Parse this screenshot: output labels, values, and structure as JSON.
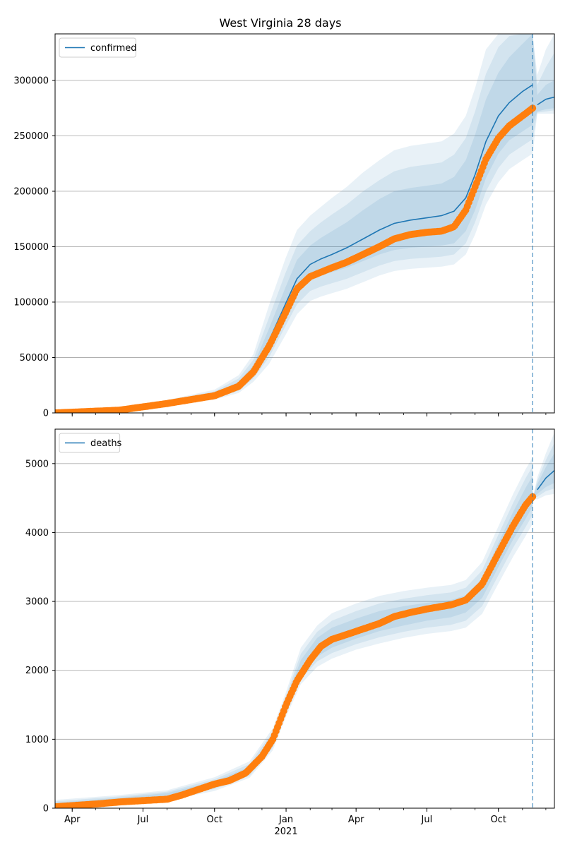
{
  "figure": {
    "title": "West Virginia 28 days"
  },
  "colors": {
    "model": "#1f77b4",
    "observed": "#ff7f0e",
    "band": "#1f77b4",
    "grid": "#b0b0b0",
    "forecast_line": "#1f77b4"
  },
  "chart_data": [
    {
      "type": "line",
      "name": "confirmed",
      "legend": [
        "confirmed"
      ],
      "legend_position": "upper-left",
      "grid": "y",
      "forecast_start": "2021-11-14",
      "xlim": [
        "2020-03-10",
        "2021-12-12"
      ],
      "ylim": [
        0,
        342000
      ],
      "yticks": [
        0,
        50000,
        100000,
        150000,
        200000,
        250000,
        300000
      ],
      "xticks": [
        {
          "date": "2020-04-01",
          "label": "Apr"
        },
        {
          "date": "2020-07-01",
          "label": "Jul"
        },
        {
          "date": "2020-10-01",
          "label": "Oct"
        },
        {
          "date": "2021-01-01",
          "label": "Jan"
        },
        {
          "date": "2021-04-01",
          "label": "Apr"
        },
        {
          "date": "2021-07-01",
          "label": "Jul"
        },
        {
          "date": "2021-10-01",
          "label": "Oct"
        }
      ],
      "model": {
        "x": [
          "2020-03-10",
          "2020-06-01",
          "2020-08-01",
          "2020-10-01",
          "2020-11-01",
          "2020-11-20",
          "2020-12-10",
          "2020-12-31",
          "2021-01-15",
          "2021-02-01",
          "2021-02-15",
          "2021-03-01",
          "2021-03-20",
          "2021-04-10",
          "2021-05-01",
          "2021-05-20",
          "2021-06-10",
          "2021-07-01",
          "2021-07-20",
          "2021-08-05",
          "2021-08-20",
          "2021-09-01",
          "2021-09-15",
          "2021-10-01",
          "2021-10-15",
          "2021-11-01",
          "2021-11-14",
          "2021-11-20",
          "2021-12-01",
          "2021-12-12"
        ],
        "y": [
          0,
          3000,
          9000,
          16000,
          25000,
          38000,
          65000,
          98000,
          121000,
          134000,
          139000,
          143000,
          149000,
          157000,
          165000,
          171000,
          174000,
          176000,
          178000,
          182000,
          194000,
          215000,
          245000,
          268000,
          280000,
          290000,
          296000,
          278000,
          283000,
          285000
        ],
        "bands": [
          {
            "lower": [
              0,
              2600,
              8000,
              14000,
              22000,
              34000,
              56000,
              86000,
              108000,
              120000,
              124000,
              127000,
              131000,
              137000,
              143000,
              147000,
              149000,
              150000,
              151000,
              153000,
              164000,
              183000,
              212000,
              234000,
              246000,
              254000,
              260000,
              272000,
              274000,
              275000
            ],
            "upper": [
              0,
              3400,
              10000,
              18000,
              28000,
              43000,
              76000,
              113000,
              138000,
              151000,
              158000,
              164000,
              172000,
              183000,
              193000,
              200000,
              203000,
              205000,
              207000,
              213000,
              228000,
              251000,
              283000,
              307000,
              321000,
              333000,
              342000,
              287000,
              296000,
              300000
            ]
          },
          {
            "lower": [
              0,
              2400,
              7400,
              13000,
              20000,
              31000,
              50000,
              78000,
              98000,
              110000,
              114000,
              117000,
              121000,
              127000,
              133000,
              137000,
              139000,
              140000,
              141000,
              143000,
              153000,
              172000,
              200000,
              221000,
              233000,
              241000,
              247000,
              271000,
              272000,
              273000
            ],
            "upper": [
              0,
              3600,
              10800,
              19500,
              31000,
              48000,
              86000,
              126000,
              151000,
              164000,
              172000,
              179000,
              188000,
              200000,
              210000,
              218000,
              222000,
              224000,
              226000,
              233000,
              248000,
              272000,
              306000,
              330000,
              340000,
              342000,
              342000,
              296000,
              312000,
              325000
            ]
          },
          {
            "lower": [
              0,
              2200,
              6800,
              12000,
              18000,
              28000,
              44000,
              70000,
              89000,
              101000,
              105000,
              108000,
              112000,
              118000,
              124000,
              128000,
              130000,
              131000,
              132000,
              134000,
              143000,
              161000,
              188000,
              208000,
              220000,
              228000,
              234000,
              270000,
              270000,
              270000
            ],
            "upper": [
              0,
              3800,
              11600,
              21000,
              34000,
              53000,
              97000,
              139000,
              165000,
              178000,
              186000,
              194000,
              204000,
              217000,
              228000,
              237000,
              241000,
              243000,
              245000,
              252000,
              268000,
              293000,
              328000,
              342000,
              342000,
              342000,
              342000,
              305000,
              328000,
              342000
            ]
          }
        ]
      },
      "observed": {
        "x": [
          "2020-03-10",
          "2020-06-01",
          "2020-08-01",
          "2020-10-01",
          "2020-11-01",
          "2020-11-20",
          "2020-12-10",
          "2020-12-31",
          "2021-01-15",
          "2021-02-01",
          "2021-02-15",
          "2021-03-01",
          "2021-03-20",
          "2021-04-10",
          "2021-05-01",
          "2021-05-20",
          "2021-06-10",
          "2021-07-01",
          "2021-07-20",
          "2021-08-05",
          "2021-08-20",
          "2021-09-01",
          "2021-09-15",
          "2021-10-01",
          "2021-10-15",
          "2021-11-01",
          "2021-11-14"
        ],
        "y": [
          0,
          2500,
          8500,
          15500,
          24000,
          37000,
          60000,
          90000,
          112000,
          123000,
          127000,
          131000,
          136000,
          143000,
          150000,
          157000,
          161000,
          163000,
          164000,
          168000,
          183000,
          204000,
          229000,
          248000,
          259000,
          268000,
          275000
        ]
      }
    },
    {
      "type": "line",
      "name": "deaths",
      "legend": [
        "deaths"
      ],
      "legend_position": "upper-left",
      "grid": "y",
      "forecast_start": "2021-11-14",
      "xlim": [
        "2020-03-10",
        "2021-12-12"
      ],
      "ylim": [
        0,
        5500
      ],
      "yticks": [
        0,
        1000,
        2000,
        3000,
        4000,
        5000
      ],
      "xticks": [
        {
          "date": "2020-04-01",
          "label": "Apr"
        },
        {
          "date": "2020-07-01",
          "label": "Jul"
        },
        {
          "date": "2020-10-01",
          "label": "Oct"
        },
        {
          "date": "2021-01-01",
          "label": "Jan",
          "sublabel": "2021"
        },
        {
          "date": "2021-04-01",
          "label": "Apr"
        },
        {
          "date": "2021-07-01",
          "label": "Jul"
        },
        {
          "date": "2021-10-01",
          "label": "Oct"
        }
      ],
      "model": {
        "x": [
          "2021-11-14",
          "2021-11-20",
          "2021-12-01",
          "2021-12-12"
        ],
        "y": [
          4500,
          4620,
          4790,
          4900
        ],
        "bands": [
          {
            "lower": [
              4500,
              4560,
              4660,
              4720
            ],
            "upper": [
              4500,
              4700,
              4950,
              5150
            ]
          },
          {
            "lower": [
              4500,
              4520,
              4600,
              4640
            ],
            "upper": [
              4500,
              4750,
              5050,
              5300
            ]
          },
          {
            "lower": [
              4500,
              4480,
              4540,
              4560
            ],
            "upper": [
              4500,
              4800,
              5150,
              5450
            ]
          }
        ]
      },
      "history_bands": {
        "x": [
          "2020-03-10",
          "2020-06-01",
          "2020-08-01",
          "2020-10-01",
          "2020-11-15",
          "2020-12-15",
          "2021-01-01",
          "2021-01-20",
          "2021-02-10",
          "2021-03-01",
          "2021-04-01",
          "2021-05-01",
          "2021-06-01",
          "2021-07-01",
          "2021-08-01",
          "2021-08-20",
          "2021-09-10",
          "2021-10-01",
          "2021-10-20",
          "2021-11-05",
          "2021-11-14"
        ],
        "bands": [
          {
            "lower": [
              0,
              80,
              150,
              310,
              500,
              920,
              1430,
              1950,
              2200,
              2330,
              2460,
              2570,
              2650,
              2720,
              2770,
              2840,
              3050,
              3500,
              3900,
              4200,
              4380
            ],
            "upper": [
              80,
              150,
              220,
              390,
              600,
              1060,
              1570,
              2150,
              2470,
              2620,
              2750,
              2860,
              2930,
              2980,
              3020,
              3090,
              3330,
              3850,
              4300,
              4650,
              4820
            ]
          },
          {
            "lower": [
              0,
              60,
              130,
              280,
              470,
              880,
              1380,
              1870,
              2130,
              2250,
              2380,
              2480,
              2560,
              2620,
              2660,
              2720,
              2930,
              3380,
              3780,
              4080,
              4260
            ],
            "upper": [
              100,
              170,
              240,
              420,
              640,
              1110,
              1630,
              2240,
              2560,
              2720,
              2860,
              2970,
              3040,
              3090,
              3130,
              3200,
              3450,
              3970,
              4430,
              4790,
              4960
            ]
          },
          {
            "lower": [
              0,
              40,
              110,
              250,
              440,
              840,
              1330,
              1800,
              2050,
              2170,
              2300,
              2390,
              2470,
              2530,
              2570,
              2620,
              2820,
              3260,
              3650,
              3950,
              4130
            ],
            "upper": [
              120,
              190,
              260,
              450,
              680,
              1160,
              1690,
              2330,
              2650,
              2830,
              2970,
              3080,
              3150,
              3200,
              3240,
              3310,
              3570,
              4090,
              4560,
              4920,
              5090
            ]
          }
        ]
      },
      "observed": {
        "x": [
          "2020-03-10",
          "2020-05-01",
          "2020-06-01",
          "2020-07-01",
          "2020-08-01",
          "2020-08-20",
          "2020-09-10",
          "2020-10-01",
          "2020-10-20",
          "2020-11-10",
          "2020-12-01",
          "2020-12-15",
          "2021-01-01",
          "2021-01-15",
          "2021-02-01",
          "2021-02-15",
          "2021-03-01",
          "2021-03-20",
          "2021-04-10",
          "2021-05-01",
          "2021-05-20",
          "2021-06-10",
          "2021-07-01",
          "2021-08-01",
          "2021-08-20",
          "2021-09-10",
          "2021-10-01",
          "2021-10-20",
          "2021-11-05",
          "2021-11-14"
        ],
        "y": [
          20,
          60,
          90,
          110,
          130,
          190,
          270,
          350,
          400,
          510,
          750,
          1000,
          1500,
          1850,
          2150,
          2350,
          2450,
          2520,
          2600,
          2680,
          2780,
          2840,
          2890,
          2950,
          3020,
          3250,
          3700,
          4100,
          4400,
          4520
        ]
      }
    }
  ]
}
